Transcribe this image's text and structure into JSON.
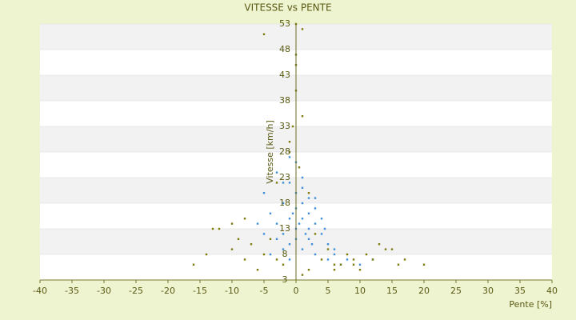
{
  "chart_data": {
    "type": "scatter",
    "title": "VITESSE vs PENTE",
    "x_label": "Pente [%]",
    "y_label": "Vitesse [km/h]",
    "xlim": [
      -40,
      40
    ],
    "xticks": [
      -40,
      -35,
      -30,
      -25,
      -20,
      -15,
      -10,
      -5,
      0,
      5,
      10,
      15,
      20,
      25,
      30,
      35,
      40
    ],
    "ylim": [
      3,
      53
    ],
    "yticks": [
      3,
      8,
      13,
      18,
      23,
      28,
      33,
      38,
      43,
      48,
      53
    ],
    "grid": true,
    "series": [
      {
        "color": "#3f8fd8",
        "x": [
          -5,
          -4,
          -3,
          -3,
          -2,
          -2,
          -1,
          -1,
          0,
          0,
          0,
          1,
          1,
          2,
          2,
          3,
          3,
          4,
          5,
          6,
          -4,
          -2,
          -1,
          0,
          1,
          2,
          3,
          -3,
          -1,
          1,
          2,
          4,
          5,
          7,
          8,
          -6,
          -5,
          0,
          1,
          -2,
          3,
          6,
          10,
          12,
          -1,
          0.5,
          1.5,
          -0.5,
          2.5,
          4.5
        ],
        "values": [
          20,
          16,
          14,
          24,
          18,
          12,
          22,
          10,
          17,
          13,
          26,
          15,
          9,
          19,
          11,
          14,
          8,
          12,
          10,
          9,
          8,
          22,
          7,
          20,
          23,
          16,
          17,
          11,
          15,
          18,
          13,
          15,
          7,
          6,
          7,
          14,
          12,
          11,
          21,
          9,
          19,
          8,
          6,
          7,
          27,
          14,
          12,
          16,
          10,
          13
        ]
      },
      {
        "color": "#7a7a10",
        "x": [
          -16,
          -14,
          -12,
          -10,
          -8,
          -6,
          -4,
          -2,
          0,
          2,
          4,
          6,
          8,
          10,
          12,
          14,
          16,
          20,
          17,
          15,
          -13,
          -10,
          -9,
          -7,
          -5,
          -3,
          -1,
          1,
          3,
          5,
          7,
          9,
          11,
          13,
          -1,
          0,
          1,
          -5,
          0.5,
          2,
          -0.5,
          -8,
          9,
          6,
          0,
          0,
          1,
          -3
        ],
        "values": [
          6,
          8,
          13,
          9,
          7,
          5,
          11,
          6,
          53,
          5,
          7,
          6,
          8,
          5,
          7,
          9,
          6,
          6,
          7,
          9,
          13,
          14,
          11,
          10,
          8,
          7,
          30,
          35,
          12,
          9,
          6,
          7,
          8,
          10,
          28,
          40,
          52,
          51,
          25,
          20,
          33,
          15,
          6,
          5,
          47,
          45,
          4,
          22
        ]
      }
    ]
  }
}
